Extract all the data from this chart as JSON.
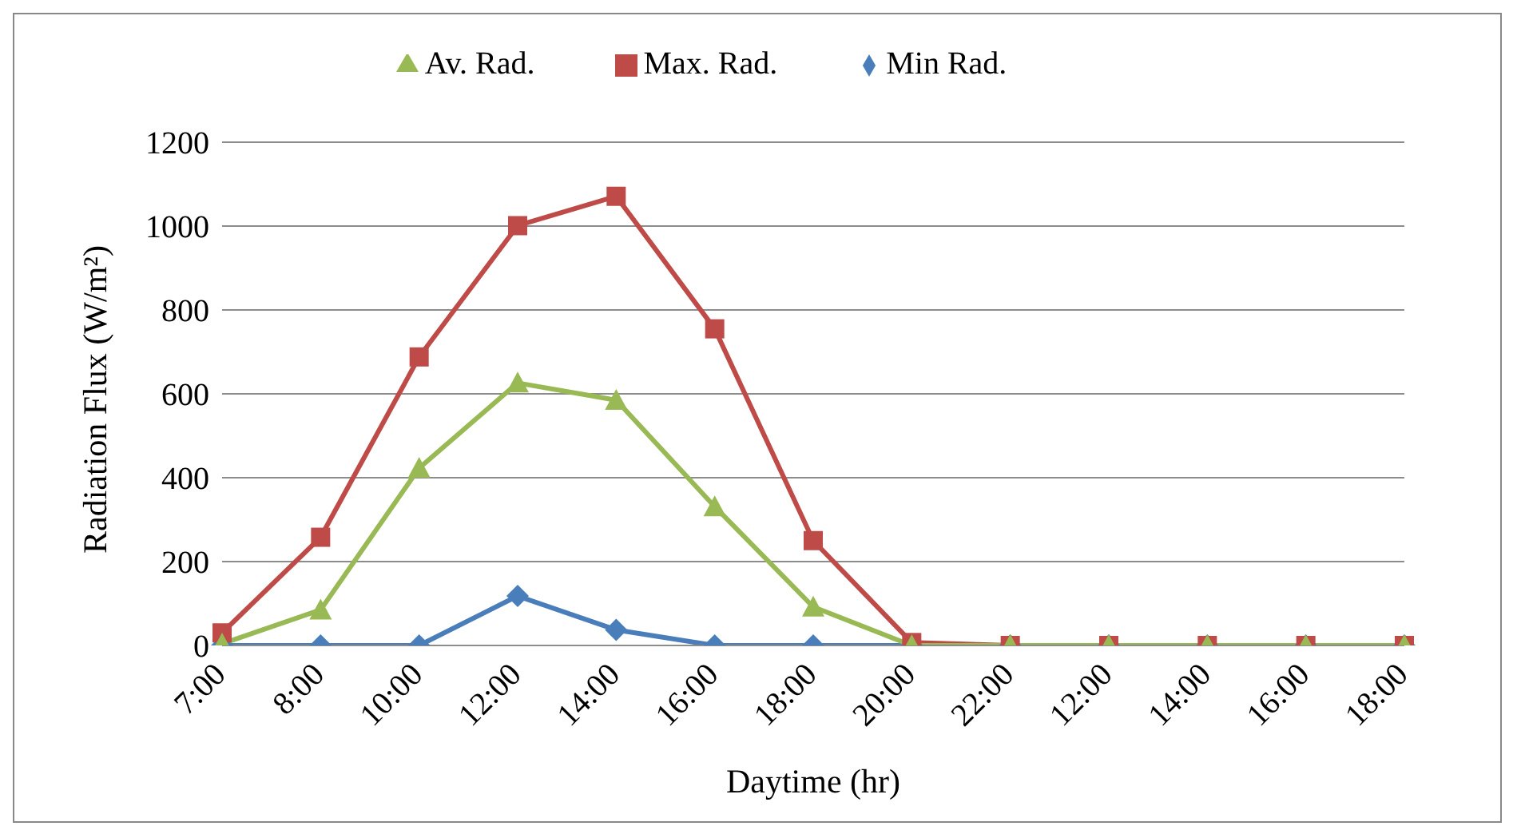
{
  "chart_data": {
    "type": "line",
    "xlabel": "Daytime (hr)",
    "ylabel": "Radiation Flux (W/m²)",
    "categories": [
      "7:00",
      "8:00",
      "10:00",
      "12:00",
      "14:00",
      "16:00",
      "18:00",
      "20:00",
      "22:00",
      "12:00",
      "14:00",
      "16:00",
      "18:00"
    ],
    "series": [
      {
        "name": "Min Rad.",
        "color": "#4a7ebb",
        "marker": "diamond",
        "values": [
          0,
          0,
          0,
          118,
          37,
          0,
          0,
          0,
          0,
          0,
          0,
          0,
          0
        ]
      },
      {
        "name": "Max. Rad.",
        "color": "#be4b48",
        "marker": "square",
        "values": [
          30,
          258,
          688,
          1001,
          1071,
          755,
          250,
          7,
          0,
          0,
          0,
          0,
          0
        ]
      },
      {
        "name": "Av. Rad.",
        "color": "#98b954",
        "marker": "triangle",
        "values": [
          4,
          85,
          423,
          626,
          585,
          331,
          92,
          0,
          0,
          0,
          0,
          0,
          0
        ]
      }
    ],
    "ylim": [
      0,
      1200
    ],
    "yticks": [
      0,
      200,
      400,
      600,
      800,
      1000,
      1200
    ],
    "grid": "y",
    "legend": "top"
  }
}
